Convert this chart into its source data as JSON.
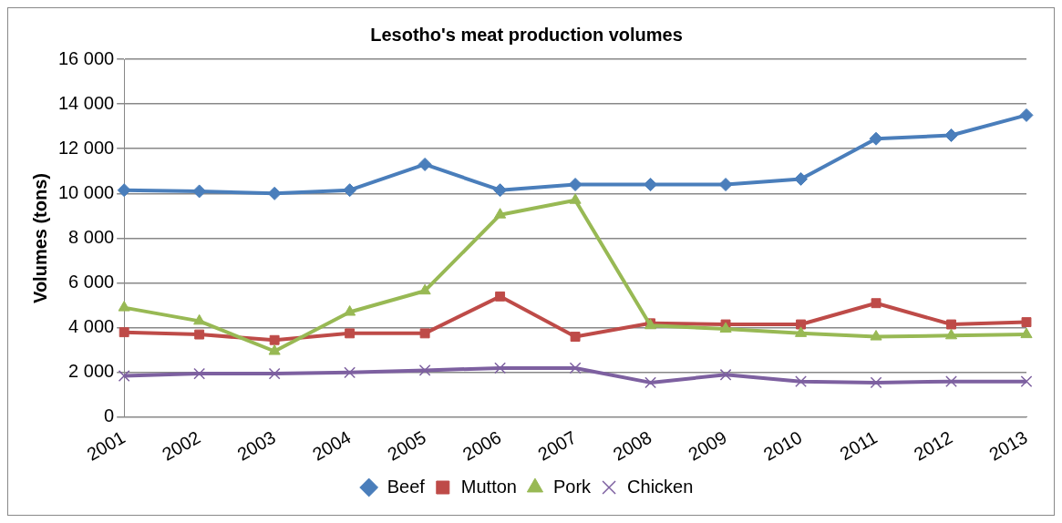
{
  "chart_data": {
    "type": "line",
    "title": "Lesotho's meat production volumes",
    "ylabel": "Volumes (tons)",
    "categories": [
      "2001",
      "2002",
      "2003",
      "2004",
      "2005",
      "2006",
      "2007",
      "2008",
      "2009",
      "2010",
      "2011",
      "2012",
      "2013"
    ],
    "series": [
      {
        "name": "Beef",
        "color": "#4a7ebb",
        "marker": "diamond",
        "values": [
          10150,
          10100,
          10000,
          10150,
          11300,
          10150,
          10400,
          10400,
          10400,
          10650,
          12450,
          12600,
          13500
        ]
      },
      {
        "name": "Mutton",
        "color": "#be4b48",
        "marker": "square",
        "values": [
          3800,
          3700,
          3450,
          3750,
          3750,
          5400,
          3600,
          4200,
          4150,
          4150,
          5100,
          4150,
          4250
        ]
      },
      {
        "name": "Pork",
        "color": "#98b954",
        "marker": "triangle",
        "values": [
          4900,
          4300,
          2950,
          4700,
          5650,
          9050,
          9700,
          4100,
          3950,
          3750,
          3600,
          3650,
          3700
        ]
      },
      {
        "name": "Chicken",
        "color": "#7d60a0",
        "marker": "cross",
        "values": [
          1850,
          1950,
          1950,
          2000,
          2100,
          2200,
          2200,
          1550,
          1900,
          1600,
          1550,
          1600,
          1600
        ]
      }
    ],
    "ylim": [
      0,
      16000
    ],
    "yticks": [
      {
        "value": 0,
        "label": "0"
      },
      {
        "value": 2000,
        "label": "2 000"
      },
      {
        "value": 4000,
        "label": "4 000"
      },
      {
        "value": 6000,
        "label": "6 000"
      },
      {
        "value": 8000,
        "label": "8 000"
      },
      {
        "value": 10000,
        "label": "10 000"
      },
      {
        "value": 12000,
        "label": "12 000"
      },
      {
        "value": 14000,
        "label": "14 000"
      },
      {
        "value": 16000,
        "label": "16 000"
      }
    ],
    "grid": "y",
    "legend": "bottom",
    "line_style": "solid"
  }
}
